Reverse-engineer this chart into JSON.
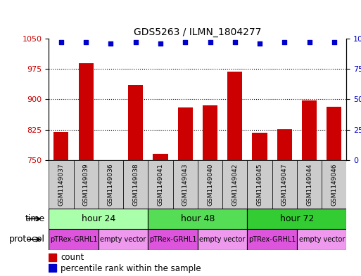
{
  "title": "GDS5263 / ILMN_1804277",
  "samples": [
    "GSM1149037",
    "GSM1149039",
    "GSM1149036",
    "GSM1149038",
    "GSM1149041",
    "GSM1149043",
    "GSM1149040",
    "GSM1149042",
    "GSM1149045",
    "GSM1149047",
    "GSM1149044",
    "GSM1149046"
  ],
  "counts": [
    820,
    990,
    750,
    935,
    765,
    880,
    885,
    968,
    818,
    826,
    898,
    882
  ],
  "percentile_ranks": [
    97,
    97,
    96,
    97,
    96,
    97,
    97,
    97,
    96,
    97,
    97,
    97
  ],
  "ylim_left": [
    750,
    1050
  ],
  "ylim_right": [
    0,
    100
  ],
  "yticks_left": [
    750,
    825,
    900,
    975,
    1050
  ],
  "yticks_right": [
    0,
    25,
    50,
    75,
    100
  ],
  "bar_color": "#cc0000",
  "dot_color": "#0000cc",
  "grid_color": "#000000",
  "time_groups": [
    {
      "label": "hour 24",
      "start": 0,
      "end": 4,
      "color": "#aaffaa"
    },
    {
      "label": "hour 48",
      "start": 4,
      "end": 8,
      "color": "#55dd55"
    },
    {
      "label": "hour 72",
      "start": 8,
      "end": 12,
      "color": "#33cc33"
    }
  ],
  "protocol_groups": [
    {
      "label": "pTRex-GRHL1",
      "start": 0,
      "end": 2,
      "color": "#dd55dd"
    },
    {
      "label": "empty vector",
      "start": 2,
      "end": 4,
      "color": "#ee99ee"
    },
    {
      "label": "pTRex-GRHL1",
      "start": 4,
      "end": 6,
      "color": "#dd55dd"
    },
    {
      "label": "empty vector",
      "start": 6,
      "end": 8,
      "color": "#ee99ee"
    },
    {
      "label": "pTRex-GRHL1",
      "start": 8,
      "end": 10,
      "color": "#dd55dd"
    },
    {
      "label": "empty vector",
      "start": 10,
      "end": 12,
      "color": "#ee99ee"
    }
  ],
  "sample_box_color": "#cccccc",
  "legend_count_color": "#cc0000",
  "legend_dot_color": "#0000cc",
  "background_color": "#ffffff",
  "xlabel_time": "time",
  "xlabel_protocol": "protocol"
}
